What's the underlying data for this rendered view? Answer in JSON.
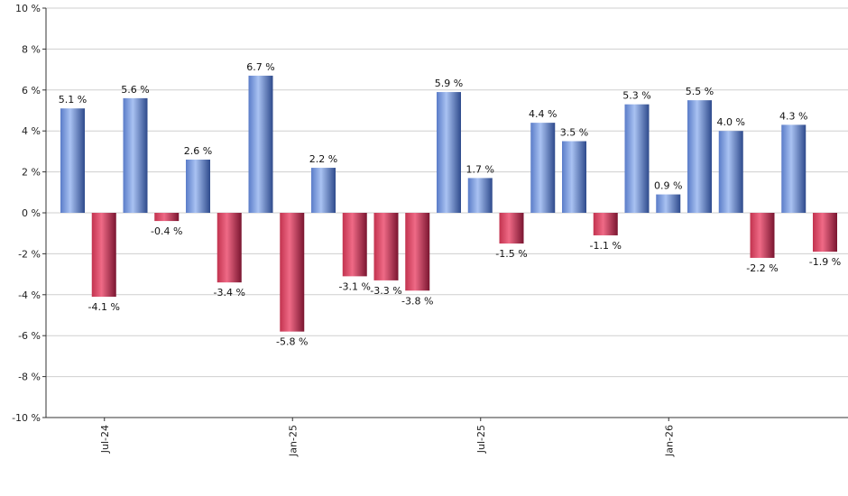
{
  "chart_data": {
    "type": "bar",
    "title": "",
    "xlabel": "",
    "ylabel": "",
    "ylim": [
      -10,
      10
    ],
    "y_ticks": [
      10,
      8,
      6,
      4,
      2,
      0,
      -2,
      -4,
      -6,
      -8,
      -10
    ],
    "y_tick_labels": [
      "10 %",
      "8 %",
      "6 %",
      "4 %",
      "2 %",
      "0 %",
      "-2 %",
      "-4 %",
      "-6 %",
      "-8 %",
      "-10 %"
    ],
    "x_tick_labels": [
      {
        "label": "Jul-24",
        "after_bar_index": 1
      },
      {
        "label": "Jan-25",
        "after_bar_index": 7
      },
      {
        "label": "Jul-25",
        "after_bar_index": 13
      },
      {
        "label": "Jan-26",
        "after_bar_index": 19
      }
    ],
    "values": [
      5.1,
      -4.1,
      5.6,
      -0.4,
      2.6,
      -3.4,
      6.7,
      -5.8,
      2.2,
      -3.1,
      -3.3,
      -3.8,
      5.9,
      1.7,
      -1.5,
      4.4,
      3.5,
      -1.1,
      5.3,
      0.9,
      5.5,
      4.0,
      -2.2,
      4.3,
      -1.9
    ],
    "data_labels": [
      "5.1 %",
      "-4.1 %",
      "5.6 %",
      "-0.4 %",
      "2.6 %",
      "-3.4 %",
      "6.7 %",
      "-5.8 %",
      "2.2 %",
      "-3.1 %",
      "-3.3 %",
      "-3.8 %",
      "5.9 %",
      "1.7 %",
      "-1.5 %",
      "4.4 %",
      "3.5 %",
      "-1.1 %",
      "5.3 %",
      "0.9 %",
      "5.5 %",
      "4.0 %",
      "-2.2 %",
      "4.3 %",
      "-1.9 %"
    ],
    "grid": true,
    "legend": "none",
    "colors": {
      "positive": "#7d9fe0",
      "positive_dark": "#3f5a9a",
      "negative": "#e0486a",
      "negative_dark": "#8e1f3a"
    }
  }
}
